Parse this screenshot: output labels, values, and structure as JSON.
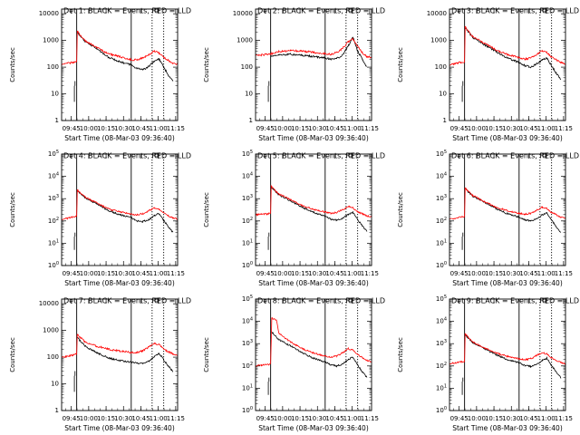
{
  "figure": {
    "xtick_labels": [
      "09:45",
      "10:00",
      "10:15",
      "10:30",
      "10:45",
      "11:00",
      "11:15"
    ],
    "xlabel": "Start Time (08-Mar-03 09:36:40)",
    "ylabel": "Counts/sec",
    "colors": {
      "events": "#000000",
      "lld": "#ff0000",
      "axes": "#000000"
    }
  },
  "chart_data": [
    {
      "type": "line",
      "title": "Det 1: BLACK = Events, RED = LLD",
      "ytick_style": "plain",
      "xlim_minutes": [
        0,
        100
      ],
      "ylim": [
        1,
        15000
      ],
      "yscale": "log",
      "series": [
        {
          "name": "BLACK = Events",
          "x": [
            0,
            5,
            10,
            13,
            13.5,
            20,
            30,
            40,
            50,
            60,
            65,
            70,
            75,
            80,
            84,
            88,
            92,
            96
          ],
          "y": [
            null,
            null,
            null,
            null,
            2000,
            950,
            500,
            240,
            160,
            120,
            90,
            80,
            105,
            170,
            200,
            100,
            50,
            30
          ]
        },
        {
          "name": "RED = LLD",
          "x": [
            0,
            5,
            10,
            13,
            13.5,
            20,
            30,
            40,
            50,
            60,
            65,
            70,
            75,
            80,
            84,
            88,
            92,
            96,
            100
          ],
          "y": [
            120,
            140,
            150,
            160,
            2200,
            1000,
            550,
            320,
            250,
            190,
            190,
            220,
            290,
            400,
            330,
            230,
            180,
            140,
            130
          ]
        }
      ]
    },
    {
      "type": "line",
      "title": "Det 2: BLACK = Events, RED = LLD",
      "ytick_style": "plain",
      "xlim_minutes": [
        0,
        100
      ],
      "ylim": [
        1,
        15000
      ],
      "yscale": "log",
      "series": [
        {
          "name": "BLACK = Events",
          "x": [
            0,
            5,
            10,
            13,
            13.5,
            20,
            30,
            40,
            50,
            60,
            65,
            70,
            75,
            80,
            84,
            88,
            92,
            96
          ],
          "y": [
            null,
            null,
            null,
            null,
            260,
            290,
            300,
            280,
            250,
            220,
            200,
            210,
            280,
            650,
            1300,
            400,
            200,
            100
          ]
        },
        {
          "name": "RED = LLD",
          "x": [
            0,
            5,
            10,
            13,
            13.5,
            20,
            30,
            40,
            50,
            60,
            65,
            70,
            75,
            80,
            84,
            88,
            92,
            96,
            100
          ],
          "y": [
            280,
            290,
            300,
            310,
            320,
            380,
            420,
            400,
            360,
            320,
            310,
            350,
            500,
            900,
            1100,
            600,
            350,
            250,
            230
          ]
        }
      ]
    },
    {
      "type": "line",
      "title": "Det 3: BLACK = Events, RED = LLD",
      "ytick_style": "plain",
      "xlim_minutes": [
        0,
        100
      ],
      "ylim": [
        1,
        15000
      ],
      "yscale": "log",
      "series": [
        {
          "name": "BLACK = Events",
          "x": [
            0,
            5,
            10,
            13,
            13.5,
            20,
            30,
            40,
            50,
            60,
            65,
            70,
            75,
            80,
            84,
            88,
            92,
            96
          ],
          "y": [
            null,
            null,
            null,
            null,
            3000,
            1300,
            700,
            380,
            220,
            150,
            115,
            100,
            130,
            190,
            220,
            110,
            60,
            35
          ]
        },
        {
          "name": "RED = LLD",
          "x": [
            0,
            5,
            10,
            13,
            13.5,
            20,
            30,
            40,
            50,
            60,
            65,
            70,
            75,
            80,
            84,
            88,
            92,
            96,
            100
          ],
          "y": [
            120,
            140,
            150,
            160,
            3200,
            1400,
            800,
            450,
            300,
            230,
            200,
            220,
            300,
            420,
            350,
            240,
            190,
            150,
            130
          ]
        }
      ]
    },
    {
      "type": "line",
      "title": "Det 4: BLACK = Events, RED = LLD",
      "ytick_style": "power",
      "xlim_minutes": [
        0,
        100
      ],
      "ylim": [
        1,
        100000
      ],
      "yscale": "log",
      "series": [
        {
          "name": "BLACK = Events",
          "x": [
            0,
            5,
            10,
            13,
            13.5,
            20,
            30,
            40,
            50,
            60,
            65,
            70,
            75,
            80,
            84,
            88,
            92,
            96
          ],
          "y": [
            null,
            null,
            null,
            null,
            2300,
            1100,
            600,
            300,
            190,
            140,
            100,
            95,
            110,
            180,
            210,
            105,
            55,
            30
          ]
        },
        {
          "name": "RED = LLD",
          "x": [
            0,
            5,
            10,
            13,
            13.5,
            20,
            30,
            40,
            50,
            60,
            65,
            70,
            75,
            80,
            84,
            88,
            92,
            96,
            100
          ],
          "y": [
            120,
            135,
            150,
            160,
            2500,
            1200,
            650,
            350,
            260,
            200,
            190,
            210,
            280,
            380,
            320,
            220,
            170,
            140,
            120
          ]
        }
      ]
    },
    {
      "type": "line",
      "title": "Det 5: BLACK = Events, RED = LLD",
      "ytick_style": "power",
      "xlim_minutes": [
        0,
        100
      ],
      "ylim": [
        1,
        100000
      ],
      "yscale": "log",
      "series": [
        {
          "name": "BLACK = Events",
          "x": [
            0,
            5,
            10,
            13,
            13.5,
            20,
            30,
            40,
            50,
            60,
            65,
            70,
            75,
            80,
            84,
            88,
            92,
            96
          ],
          "y": [
            null,
            null,
            null,
            null,
            3300,
            1500,
            800,
            420,
            240,
            160,
            120,
            110,
            130,
            200,
            240,
            115,
            60,
            35
          ]
        },
        {
          "name": "RED = LLD",
          "x": [
            0,
            5,
            10,
            13,
            13.5,
            20,
            30,
            40,
            50,
            60,
            65,
            70,
            75,
            80,
            84,
            88,
            92,
            96,
            100
          ],
          "y": [
            190,
            200,
            210,
            220,
            3500,
            1600,
            900,
            500,
            330,
            250,
            220,
            240,
            320,
            450,
            380,
            260,
            210,
            170,
            150
          ]
        }
      ]
    },
    {
      "type": "line",
      "title": "Det 6: BLACK = Events, RED = LLD",
      "ytick_style": "power",
      "xlim_minutes": [
        0,
        100
      ],
      "ylim": [
        1,
        100000
      ],
      "yscale": "log",
      "series": [
        {
          "name": "BLACK = Events",
          "x": [
            0,
            5,
            10,
            13,
            13.5,
            20,
            30,
            40,
            50,
            60,
            65,
            70,
            75,
            80,
            84,
            88,
            92,
            96
          ],
          "y": [
            null,
            null,
            null,
            null,
            2800,
            1300,
            700,
            360,
            210,
            150,
            110,
            100,
            120,
            190,
            230,
            110,
            55,
            30
          ]
        },
        {
          "name": "RED = LLD",
          "x": [
            0,
            5,
            10,
            13,
            13.5,
            20,
            30,
            40,
            50,
            60,
            65,
            70,
            75,
            80,
            84,
            88,
            92,
            96,
            100
          ],
          "y": [
            120,
            135,
            150,
            160,
            3000,
            1400,
            750,
            420,
            290,
            220,
            200,
            220,
            300,
            420,
            350,
            240,
            190,
            150,
            130
          ]
        }
      ]
    },
    {
      "type": "line",
      "title": "Det 7: BLACK = Events, RED = LLD",
      "ytick_style": "plain",
      "xlim_minutes": [
        0,
        100
      ],
      "ylim": [
        1,
        15000
      ],
      "yscale": "log",
      "series": [
        {
          "name": "BLACK = Events",
          "x": [
            0,
            5,
            10,
            13,
            13.5,
            20,
            30,
            40,
            50,
            60,
            65,
            70,
            75,
            80,
            84,
            88,
            92,
            96
          ],
          "y": [
            null,
            null,
            null,
            null,
            550,
            260,
            150,
            95,
            75,
            65,
            60,
            60,
            70,
            110,
            140,
            80,
            45,
            30
          ]
        },
        {
          "name": "RED = LLD",
          "x": [
            0,
            5,
            10,
            13,
            13.5,
            20,
            30,
            40,
            50,
            60,
            65,
            70,
            75,
            80,
            84,
            88,
            92,
            96,
            100
          ],
          "y": [
            100,
            110,
            120,
            130,
            700,
            380,
            260,
            200,
            170,
            150,
            150,
            170,
            240,
            330,
            290,
            200,
            160,
            130,
            115
          ]
        }
      ]
    },
    {
      "type": "line",
      "title": "Det 8: BLACK = Events, RED = LLD",
      "ytick_style": "power",
      "xlim_minutes": [
        0,
        100
      ],
      "ylim": [
        1,
        100000
      ],
      "yscale": "log",
      "series": [
        {
          "name": "BLACK = Events",
          "x": [
            0,
            5,
            10,
            13,
            13.5,
            20,
            30,
            40,
            50,
            60,
            65,
            70,
            75,
            80,
            84,
            88,
            92,
            96
          ],
          "y": [
            null,
            null,
            null,
            null,
            3500,
            1500,
            800,
            400,
            220,
            150,
            110,
            100,
            120,
            200,
            250,
            110,
            55,
            30
          ]
        },
        {
          "name": "RED = LLD",
          "x": [
            0,
            5,
            10,
            13,
            14,
            15,
            18,
            20,
            30,
            40,
            50,
            60,
            65,
            70,
            75,
            80,
            84,
            88,
            92,
            96,
            100
          ],
          "y": [
            100,
            110,
            115,
            120,
            14000,
            13000,
            12000,
            3000,
            1200,
            600,
            380,
            280,
            250,
            280,
            380,
            600,
            500,
            320,
            240,
            180,
            150
          ]
        }
      ]
    },
    {
      "type": "line",
      "title": "Det 9: BLACK = Events, RED = LLD",
      "ytick_style": "power",
      "xlim_minutes": [
        0,
        100
      ],
      "ylim": [
        1,
        100000
      ],
      "yscale": "log",
      "series": [
        {
          "name": "BLACK = Events",
          "x": [
            0,
            5,
            10,
            13,
            13.5,
            20,
            30,
            40,
            50,
            60,
            65,
            70,
            75,
            80,
            84,
            88,
            92,
            96
          ],
          "y": [
            null,
            null,
            null,
            null,
            2500,
            1100,
            600,
            320,
            190,
            140,
            105,
            95,
            115,
            180,
            220,
            105,
            55,
            30
          ]
        },
        {
          "name": "RED = LLD",
          "x": [
            0,
            5,
            10,
            13,
            13.5,
            20,
            30,
            40,
            50,
            60,
            65,
            70,
            75,
            80,
            84,
            88,
            92,
            96,
            100
          ],
          "y": [
            130,
            140,
            150,
            160,
            2700,
            1200,
            650,
            380,
            270,
            210,
            190,
            210,
            290,
            400,
            340,
            230,
            180,
            145,
            125
          ]
        }
      ]
    }
  ]
}
